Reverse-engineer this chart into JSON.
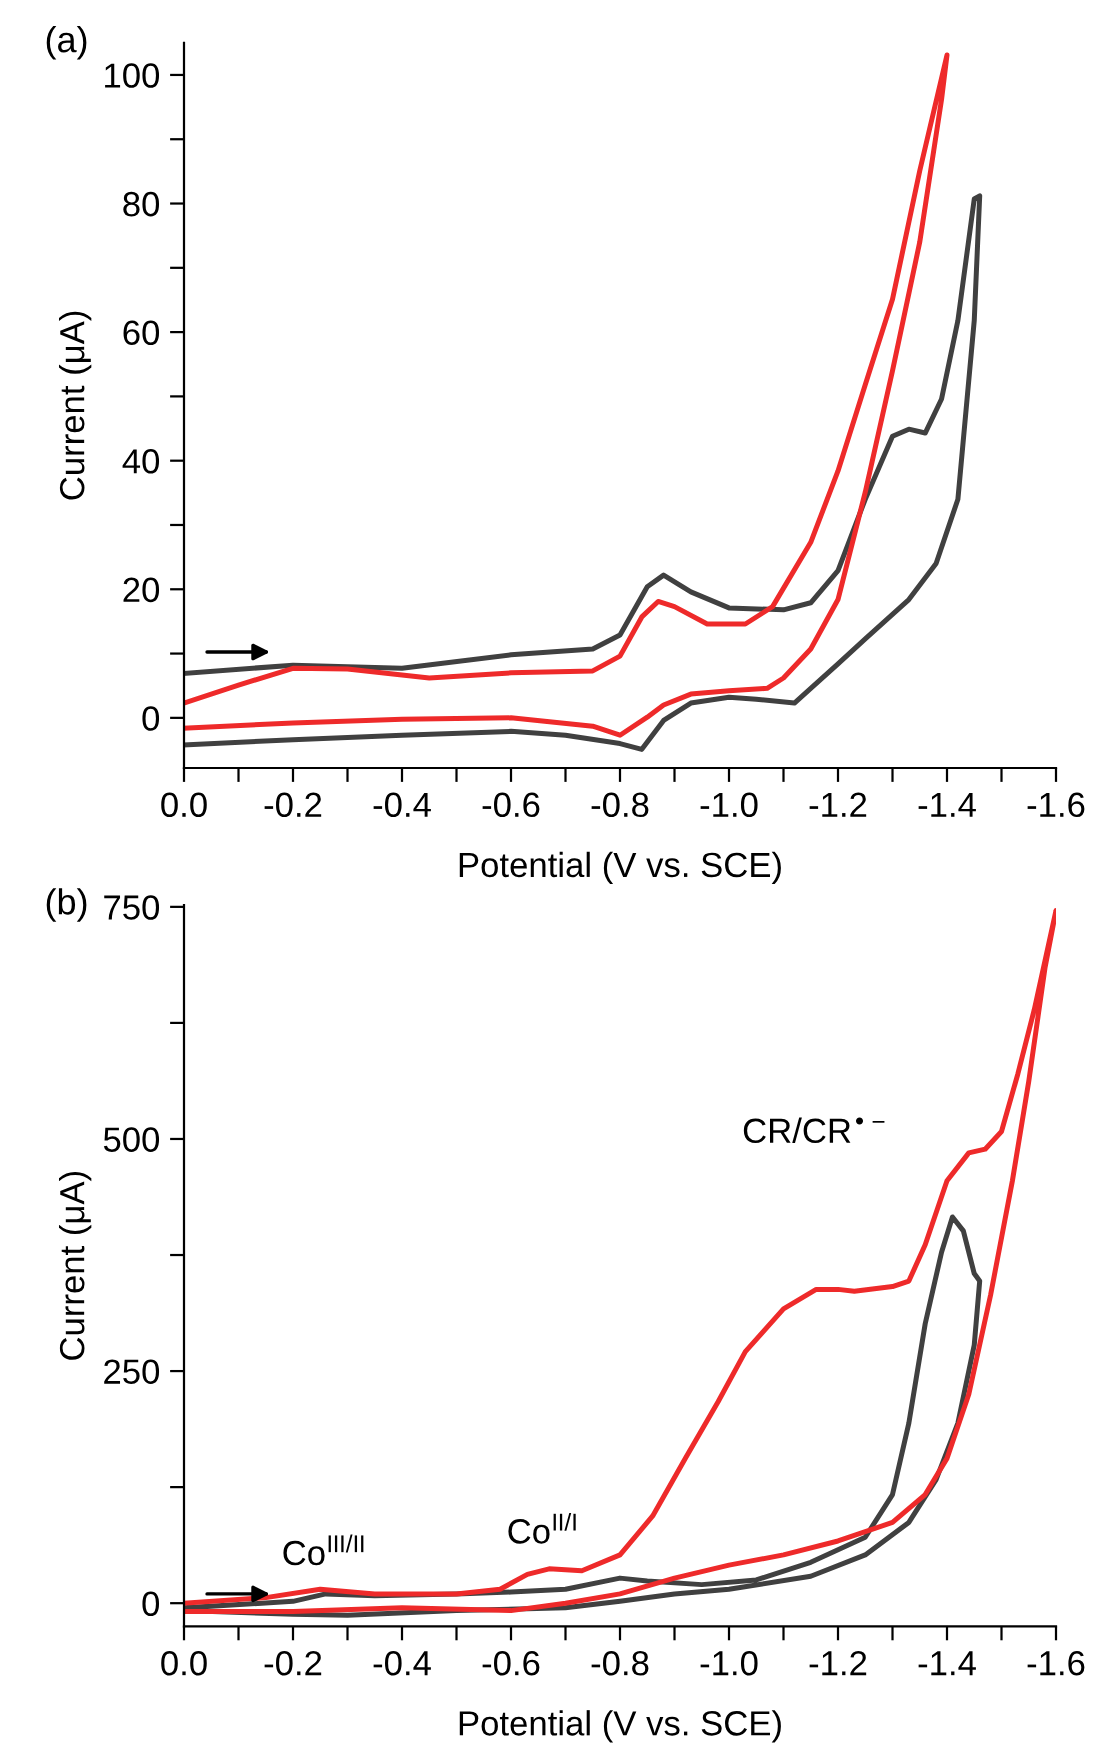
{
  "chart_data": [
    {
      "type": "line",
      "title": "(a)",
      "xlabel": "Potential (V vs. SCE)",
      "ylabel": "Current (μA)",
      "xlim": [
        0,
        -1.6
      ],
      "ylim": [
        -7.8,
        105
      ],
      "xticks": [
        {
          "value": 0,
          "label": "0.0"
        },
        {
          "value": -0.1,
          "label": null
        },
        {
          "value": -0.2,
          "label": "-0.2"
        },
        {
          "value": -0.3,
          "label": null
        },
        {
          "value": -0.4,
          "label": "-0.4"
        },
        {
          "value": -0.5,
          "label": null
        },
        {
          "value": -0.6,
          "label": "-0.6"
        },
        {
          "value": -0.7,
          "label": null
        },
        {
          "value": -0.8,
          "label": "-0.8"
        },
        {
          "value": -0.9,
          "label": null
        },
        {
          "value": -1.0,
          "label": "-1.0"
        },
        {
          "value": -1.1,
          "label": null
        },
        {
          "value": -1.2,
          "label": "-1.2"
        },
        {
          "value": -1.3,
          "label": null
        },
        {
          "value": -1.4,
          "label": "-1.4"
        },
        {
          "value": -1.5,
          "label": null
        },
        {
          "value": -1.6,
          "label": "-1.6"
        }
      ],
      "yticks": [
        0,
        {
          "value": 10,
          "label": null
        },
        20,
        {
          "value": 30,
          "label": null
        },
        40,
        {
          "value": 50,
          "label": null
        },
        60,
        {
          "value": 70,
          "label": null
        },
        80,
        {
          "value": 90,
          "label": null
        },
        100
      ],
      "grid": false,
      "legend": false,
      "line_style": "solid",
      "marker": "none",
      "series": [
        {
          "color": "#404040",
          "x": [
            0,
            -0.2,
            -0.4,
            -0.6,
            -0.75,
            -0.8,
            -0.85,
            -0.88,
            -0.93,
            -1.0,
            -1.1,
            -1.15,
            -1.2,
            -1.25,
            -1.3,
            -1.33,
            -1.36,
            -1.39,
            -1.42,
            -1.45,
            -1.46,
            -1.45,
            -1.42,
            -1.38,
            -1.33,
            -1.25,
            -1.2,
            -1.15,
            -1.12,
            -1.05,
            -1.0,
            -0.93,
            -0.88,
            -0.84,
            -0.8,
            -0.7,
            -0.6,
            -0.4,
            -0.2,
            0
          ],
          "values": [
            6.9,
            8.2,
            7.7,
            9.8,
            10.7,
            12.9,
            20.4,
            22.2,
            19.6,
            17.1,
            16.8,
            17.9,
            22.9,
            34,
            43.8,
            44.9,
            44.3,
            49.6,
            61.8,
            80.7,
            81.2,
            61.8,
            34,
            24,
            18.4,
            12.3,
            8.4,
            4.6,
            2.3,
            2.9,
            3.2,
            2.3,
            -0.4,
            -4.9,
            -4,
            -2.7,
            -2.1,
            -2.7,
            -3.4,
            -4.2
          ]
        },
        {
          "color": "#ee2a2a",
          "x": [
            0,
            -0.1,
            -0.2,
            -0.3,
            -0.45,
            -0.6,
            -0.75,
            -0.8,
            -0.84,
            -0.87,
            -0.9,
            -0.96,
            -1.03,
            -1.08,
            -1.15,
            -1.2,
            -1.25,
            -1.3,
            -1.35,
            -1.4,
            -1.39,
            -1.35,
            -1.3,
            -1.25,
            -1.2,
            -1.15,
            -1.1,
            -1.07,
            -1.0,
            -0.93,
            -0.88,
            -0.85,
            -0.8,
            -0.75,
            -0.6,
            -0.4,
            -0.2,
            0
          ],
          "values": [
            2.3,
            5.1,
            7.7,
            7.6,
            6.2,
            7,
            7.3,
            9.6,
            15.7,
            18.1,
            17.3,
            14.6,
            14.6,
            17.3,
            27.3,
            38.4,
            51.8,
            65.1,
            85.1,
            103.1,
            96.2,
            74,
            54,
            35.1,
            18.4,
            10.7,
            6.2,
            4.6,
            4.2,
            3.7,
            2,
            0.1,
            -2.7,
            -1.3,
            0,
            -0.2,
            -0.8,
            -1.6
          ]
        }
      ]
    },
    {
      "type": "line",
      "title": "(b)",
      "xlabel": "Potential (V vs. SCE)",
      "ylabel": "Current (μA)",
      "xlim": [
        0,
        -1.6
      ],
      "ylim": [
        -25,
        752
      ],
      "xticks": [
        {
          "value": 0,
          "label": "0.0"
        },
        {
          "value": -0.1,
          "label": null
        },
        {
          "value": -0.2,
          "label": "-0.2"
        },
        {
          "value": -0.3,
          "label": null
        },
        {
          "value": -0.4,
          "label": "-0.4"
        },
        {
          "value": -0.5,
          "label": null
        },
        {
          "value": -0.6,
          "label": "-0.6"
        },
        {
          "value": -0.7,
          "label": null
        },
        {
          "value": -0.8,
          "label": "-0.8"
        },
        {
          "value": -0.9,
          "label": null
        },
        {
          "value": -1.0,
          "label": "-1.0"
        },
        {
          "value": -1.1,
          "label": null
        },
        {
          "value": -1.2,
          "label": "-1.2"
        },
        {
          "value": -1.3,
          "label": null
        },
        {
          "value": -1.4,
          "label": "-1.4"
        },
        {
          "value": -1.5,
          "label": null
        },
        {
          "value": -1.6,
          "label": "-1.6"
        }
      ],
      "yticks": [
        0,
        {
          "value": 125,
          "label": null
        },
        250,
        {
          "value": 375,
          "label": null
        },
        500,
        {
          "value": 625,
          "label": null
        },
        750
      ],
      "grid": false,
      "legend": false,
      "line_style": "solid",
      "marker": "none",
      "annotations": [
        "Co$^{III/II}$",
        "Co$^{II/I}$",
        "CR/CR$^{•−}$"
      ],
      "series": [
        {
          "color": "#404040",
          "x": [
            0,
            -0.2,
            -0.26,
            -0.35,
            -0.5,
            -0.6,
            -0.7,
            -0.8,
            -0.85,
            -0.95,
            -1.05,
            -1.15,
            -1.25,
            -1.3,
            -1.33,
            -1.36,
            -1.39,
            -1.41,
            -1.43,
            -1.45,
            -1.46,
            -1.45,
            -1.42,
            -1.38,
            -1.33,
            -1.25,
            -1.15,
            -1.0,
            -0.9,
            -0.8,
            -0.7,
            -0.5,
            -0.3,
            -0.2,
            0
          ],
          "values": [
            -5,
            2,
            10,
            8,
            10,
            12,
            15,
            27,
            24,
            20,
            25,
            44,
            71,
            117,
            194,
            301,
            378,
            416,
            401,
            355,
            347,
            278,
            194,
            133,
            87,
            52,
            29,
            15,
            10,
            2,
            -5,
            -8,
            -13,
            -12,
            -8
          ]
        },
        {
          "color": "#ee2a2a",
          "x": [
            0,
            -0.15,
            -0.25,
            -0.35,
            -0.5,
            -0.58,
            -0.63,
            -0.67,
            -0.73,
            -0.8,
            -0.86,
            -0.92,
            -0.98,
            -1.03,
            -1.1,
            -1.16,
            -1.2,
            -1.23,
            -1.3,
            -1.33,
            -1.36,
            -1.4,
            -1.44,
            -1.47,
            -1.5,
            -1.53,
            -1.56,
            -1.6,
            -1.58,
            -1.55,
            -1.52,
            -1.48,
            -1.44,
            -1.4,
            -1.36,
            -1.3,
            -1.2,
            -1.1,
            -1.0,
            -0.9,
            -0.8,
            -0.7,
            -0.6,
            -0.4,
            -0.2,
            0
          ],
          "values": [
            0,
            6,
            15,
            10,
            10,
            15,
            31,
            37,
            35,
            52,
            94,
            156,
            217,
            271,
            317,
            338,
            338,
            336,
            341,
            347,
            386,
            455,
            485,
            489,
            508,
            570,
            639,
            746,
            685,
            562,
            455,
            332,
            225,
            156,
            117,
            87,
            67,
            52,
            41,
            27,
            10,
            0,
            -8,
            -5,
            -9,
            -9
          ]
        }
      ]
    }
  ]
}
